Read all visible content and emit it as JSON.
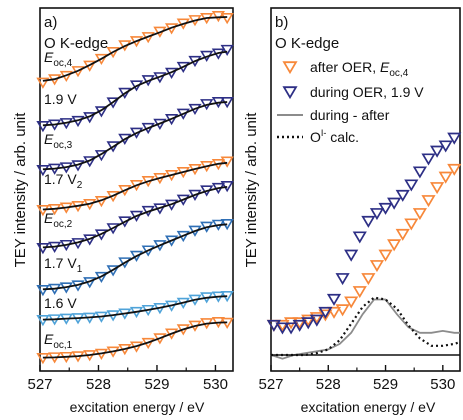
{
  "chart_data": [
    {
      "panel": "a)",
      "type": "scatter",
      "edge_label": "O K-edge",
      "xlabel": "excitation energy / eV",
      "ylabel": "TEY intensity / arb. unit",
      "xlim": [
        527,
        530.3
      ],
      "x_ticks": [
        "527",
        "528",
        "529",
        "530"
      ],
      "spectra": [
        {
          "label": "E_oc,4",
          "label_main": "E",
          "label_sub": "oc,4",
          "color": "#f7883a",
          "marker": "triangle-down",
          "fit": true,
          "x": [
            527.05,
            527.25,
            527.45,
            527.65,
            527.85,
            528.05,
            528.25,
            528.45,
            528.65,
            528.85,
            529.05,
            529.25,
            529.45,
            529.65,
            529.85,
            530.05,
            530.2
          ],
          "y": [
            0.05,
            0.1,
            0.15,
            0.22,
            0.3,
            0.4,
            0.5,
            0.6,
            0.66,
            0.72,
            0.8,
            0.85,
            0.92,
            0.97,
            1.0,
            1.03,
            1.0
          ]
        },
        {
          "label": "1.9 V",
          "color": "#2d2f85",
          "marker": "triangle-down",
          "fit": true,
          "x": [
            527.05,
            527.25,
            527.45,
            527.65,
            527.85,
            528.05,
            528.25,
            528.45,
            528.65,
            528.85,
            529.05,
            529.25,
            529.45,
            529.65,
            529.85,
            530.05,
            530.2
          ],
          "y": [
            0.0,
            0.02,
            0.04,
            0.07,
            0.12,
            0.2,
            0.32,
            0.45,
            0.55,
            0.62,
            0.66,
            0.72,
            0.8,
            0.88,
            0.95,
            0.98,
            1.03
          ]
        },
        {
          "label": "E_oc,3",
          "label_main": "E",
          "label_sub": "oc,3",
          "color": "#2d2f85",
          "marker": "triangle-down",
          "fit": true,
          "x": [
            527.05,
            527.25,
            527.45,
            527.65,
            527.85,
            528.05,
            528.25,
            528.45,
            528.65,
            528.85,
            529.05,
            529.25,
            529.45,
            529.65,
            529.85,
            530.05,
            530.2
          ],
          "y": [
            0.0,
            0.02,
            0.04,
            0.07,
            0.13,
            0.22,
            0.35,
            0.46,
            0.55,
            0.62,
            0.68,
            0.75,
            0.83,
            0.9,
            0.97,
            1.0,
            1.0
          ]
        },
        {
          "label": "1.7 V_2",
          "label_main": "1.7 V",
          "label_sub": "2",
          "color": "#f7883a",
          "marker": "triangle-down",
          "fit": true,
          "x": [
            527.05,
            527.25,
            527.45,
            527.65,
            527.85,
            528.05,
            528.25,
            528.45,
            528.65,
            528.85,
            529.05,
            529.25,
            529.45,
            529.65,
            529.85,
            530.05,
            530.2
          ],
          "y": [
            0.0,
            0.02,
            0.05,
            0.08,
            0.12,
            0.18,
            0.28,
            0.4,
            0.5,
            0.58,
            0.64,
            0.7,
            0.76,
            0.82,
            0.88,
            0.92,
            0.97
          ]
        },
        {
          "label": "E_oc,2",
          "label_main": "E",
          "label_sub": "oc,2",
          "color": "#2d2f85",
          "marker": "triangle-down",
          "fit": true,
          "x": [
            527.05,
            527.25,
            527.45,
            527.65,
            527.85,
            528.05,
            528.25,
            528.45,
            528.65,
            528.85,
            529.05,
            529.25,
            529.45,
            529.65,
            529.85,
            530.05,
            530.2
          ],
          "y": [
            0.0,
            0.02,
            0.05,
            0.08,
            0.14,
            0.22,
            0.32,
            0.43,
            0.52,
            0.6,
            0.64,
            0.7,
            0.78,
            0.86,
            0.93,
            0.97,
            1.0
          ]
        },
        {
          "label": "1.7 V_1",
          "label_main": "1.7 V",
          "label_sub": "1",
          "color": "#2f6fb5",
          "marker": "triangle-down",
          "fit": true,
          "x": [
            527.05,
            527.25,
            527.45,
            527.65,
            527.85,
            528.05,
            528.25,
            528.45,
            528.65,
            528.85,
            529.05,
            529.25,
            529.45,
            529.65,
            529.85,
            530.05,
            530.2
          ],
          "y": [
            0.0,
            0.02,
            0.04,
            0.07,
            0.12,
            0.2,
            0.3,
            0.42,
            0.52,
            0.6,
            0.68,
            0.75,
            0.82,
            0.9,
            0.96,
            0.99,
            1.0
          ]
        },
        {
          "label": "1.6 V",
          "color": "#4fa3d9",
          "marker": "triangle-down",
          "fit": true,
          "x": [
            527.05,
            527.25,
            527.45,
            527.65,
            527.85,
            528.05,
            528.25,
            528.45,
            528.65,
            528.85,
            529.05,
            529.25,
            529.45,
            529.65,
            529.85,
            530.05,
            530.2
          ],
          "y": [
            0.0,
            0.03,
            0.06,
            0.08,
            0.1,
            0.14,
            0.2,
            0.27,
            0.34,
            0.42,
            0.5,
            0.6,
            0.72,
            0.85,
            0.95,
            0.98,
            1.0
          ]
        },
        {
          "label": "E_oc,1",
          "label_main": "E",
          "label_sub": "oc,1",
          "color": "#f7883a",
          "marker": "triangle-down",
          "fit": true,
          "x": [
            527.05,
            527.25,
            527.45,
            527.65,
            527.85,
            528.05,
            528.25,
            528.45,
            528.65,
            528.85,
            529.05,
            529.25,
            529.45,
            529.65,
            529.85,
            530.05,
            530.2
          ],
          "y": [
            0.0,
            0.02,
            0.03,
            0.05,
            0.08,
            0.12,
            0.18,
            0.25,
            0.32,
            0.42,
            0.55,
            0.68,
            0.8,
            0.9,
            0.97,
            1.0,
            0.98
          ]
        }
      ]
    },
    {
      "panel": "b)",
      "type": "scatter",
      "edge_label": "O K-edge",
      "xlabel": "excitation energy / eV",
      "ylabel": "TEY intensity / arb. unit",
      "xlim": [
        527,
        530.3
      ],
      "x_ticks": [
        "527",
        "528",
        "529",
        "530"
      ],
      "legend": [
        {
          "label": "after OER, ",
          "label_main": "E",
          "label_sub": "oc,4",
          "color": "#f7883a",
          "style": "triangle-down"
        },
        {
          "label": "during OER, 1.9 V",
          "color": "#2d2f85",
          "style": "triangle-down"
        },
        {
          "label": "during - after",
          "color": "#8c8c8c",
          "style": "solid-line"
        },
        {
          "label": "O",
          "label_sup": "I-",
          "label_tail": " calc.",
          "color": "#111111",
          "style": "dotted-line"
        }
      ],
      "series": [
        {
          "name": "after OER, E_oc,4",
          "color": "#f7883a",
          "marker": "triangle-down",
          "x": [
            527.05,
            527.2,
            527.35,
            527.5,
            527.65,
            527.8,
            527.95,
            528.1,
            528.25,
            528.4,
            528.55,
            528.7,
            528.85,
            529.0,
            529.15,
            529.3,
            529.45,
            529.6,
            529.75,
            529.9,
            530.05,
            530.2
          ],
          "y": [
            0.33,
            0.33,
            0.34,
            0.34,
            0.35,
            0.36,
            0.37,
            0.38,
            0.39,
            0.42,
            0.46,
            0.51,
            0.56,
            0.6,
            0.64,
            0.68,
            0.72,
            0.76,
            0.81,
            0.86,
            0.9,
            0.93
          ]
        },
        {
          "name": "during OER, 1.9 V",
          "color": "#2d2f85",
          "marker": "triangle-down",
          "x": [
            527.05,
            527.2,
            527.35,
            527.5,
            527.65,
            527.8,
            527.95,
            528.1,
            528.25,
            528.4,
            528.55,
            528.7,
            528.85,
            529.0,
            529.15,
            529.3,
            529.45,
            529.6,
            529.75,
            529.9,
            530.05,
            530.2
          ],
          "y": [
            0.33,
            0.32,
            0.32,
            0.33,
            0.34,
            0.35,
            0.38,
            0.43,
            0.51,
            0.6,
            0.67,
            0.73,
            0.76,
            0.78,
            0.8,
            0.83,
            0.87,
            0.92,
            0.97,
            1.0,
            1.02,
            1.05
          ]
        },
        {
          "name": "during - after",
          "color": "#8c8c8c",
          "line": "solid",
          "x": [
            527.0,
            527.2,
            527.4,
            527.6,
            527.8,
            528.0,
            528.2,
            528.4,
            528.6,
            528.8,
            529.0,
            529.2,
            529.4,
            529.6,
            529.8,
            530.0,
            530.2,
            530.3
          ],
          "y": [
            0.0,
            -0.02,
            0.0,
            0.01,
            0.02,
            0.03,
            0.06,
            0.12,
            0.22,
            0.3,
            0.3,
            0.22,
            0.15,
            0.12,
            0.12,
            0.13,
            0.12,
            0.12
          ]
        },
        {
          "name": "O calc.",
          "color": "#111111",
          "line": "dotted",
          "x": [
            527.0,
            527.3,
            527.6,
            527.8,
            528.0,
            528.2,
            528.4,
            528.6,
            528.8,
            529.0,
            529.2,
            529.4,
            529.6,
            529.8,
            530.0,
            530.2,
            530.3
          ],
          "y": [
            0.0,
            0.0,
            0.0,
            0.01,
            0.03,
            0.08,
            0.17,
            0.26,
            0.31,
            0.3,
            0.25,
            0.16,
            0.09,
            0.05,
            0.05,
            0.06,
            0.07
          ]
        }
      ]
    }
  ]
}
